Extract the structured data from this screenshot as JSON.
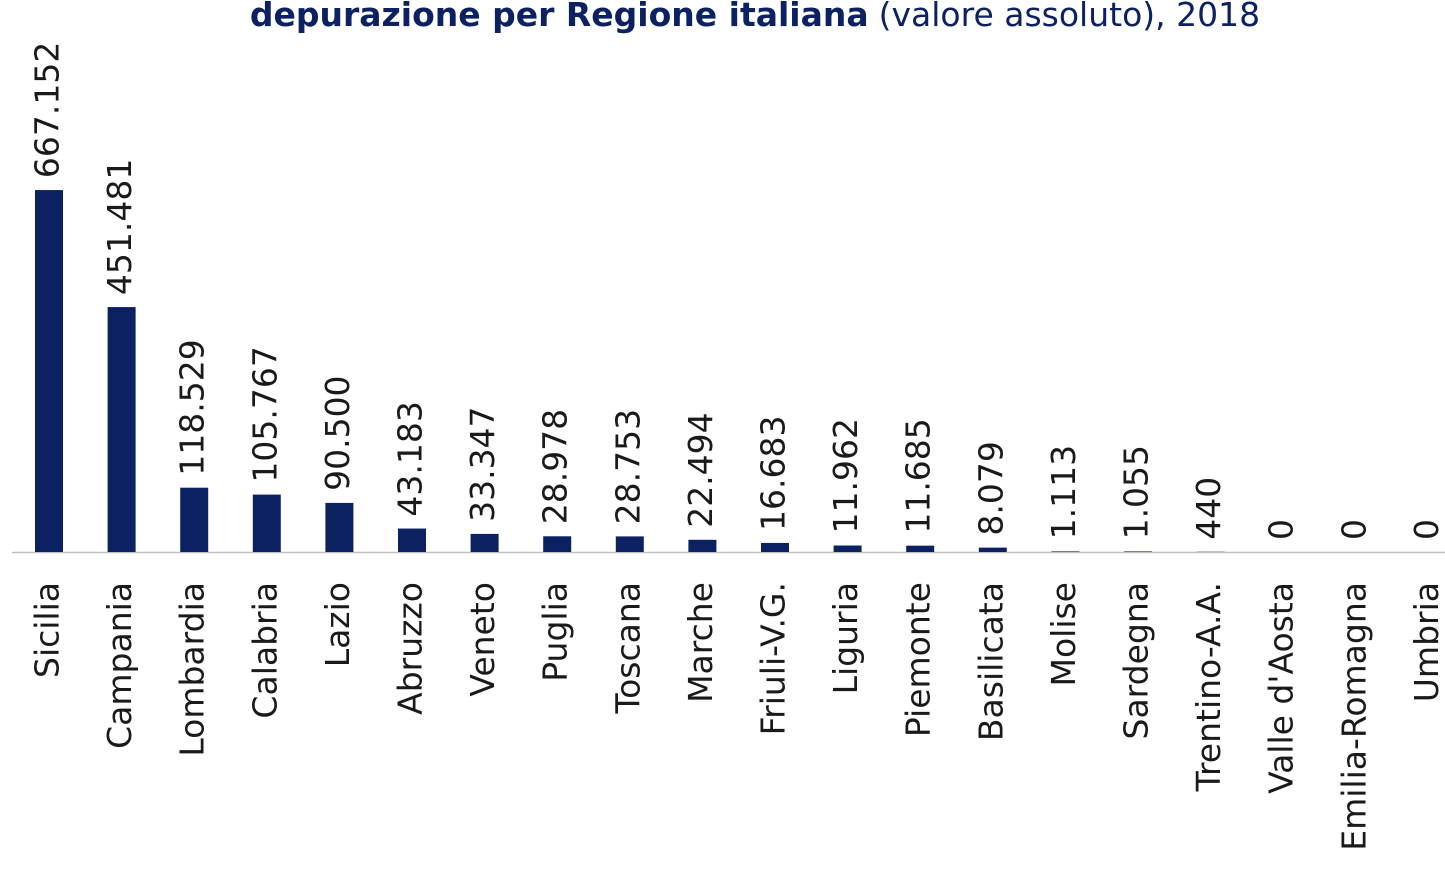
{
  "chart_data": {
    "type": "bar",
    "title_parts": [
      "depurazione per Regione italiana",
      "(valore assoluto), 2018"
    ],
    "categories": [
      "Sicilia",
      "Campania",
      "Lombardia",
      "Calabria",
      "Lazio",
      "Abruzzo",
      "Veneto",
      "Puglia",
      "Toscana",
      "Marche",
      "Friuli-V.G.",
      "Liguria",
      "Piemonte",
      "Basilicata",
      "Molise",
      "Sardegna",
      "Trentino-A.A.",
      "Valle d'Aosta",
      "Emilia-Romagna",
      "Umbria"
    ],
    "values": [
      667152,
      451481,
      118529,
      105767,
      90500,
      43183,
      33347,
      28978,
      28753,
      22494,
      16683,
      11962,
      11685,
      8079,
      1113,
      1055,
      440,
      0,
      0,
      0
    ],
    "value_labels": [
      "667.152",
      "451.481",
      "118.529",
      "105.767",
      "90.500",
      "43.183",
      "33.347",
      "28.978",
      "28.753",
      "22.494",
      "16.683",
      "11.962",
      "11.685",
      "8.079",
      "1.113",
      "1.055",
      "440",
      "0",
      "0",
      "0"
    ],
    "color": "#0b2161",
    "ylim": [
      0,
      800000
    ]
  }
}
